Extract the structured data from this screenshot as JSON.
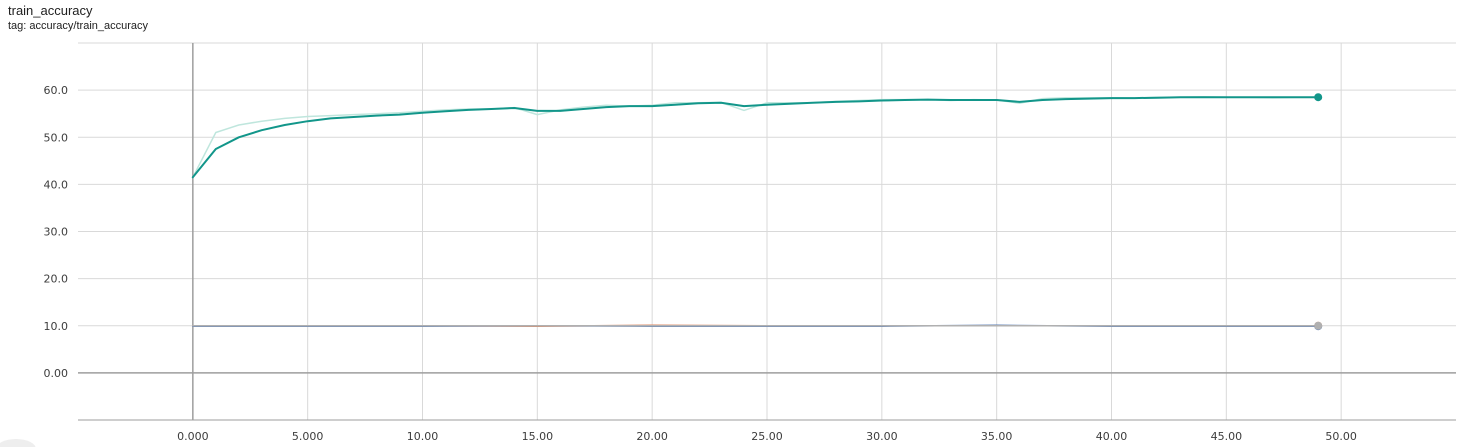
{
  "chart": {
    "title": "train_accuracy",
    "tag": "tag: accuracy/train_accuracy"
  },
  "colors": {
    "primary_run": "#12968a",
    "primary_run_raw": "#bfe6dd",
    "flat_run_orange": "#e0865e",
    "flat_run_blue": "#5b7fb8",
    "flat_run_gray": "#b0b0b0",
    "grid": "#d9d9d9",
    "axis": "#9e9e9e"
  },
  "chart_data": {
    "type": "line",
    "title": "train_accuracy",
    "xlim": [
      -5,
      55
    ],
    "ylim": [
      -10,
      70
    ],
    "xticks": [
      0,
      5,
      10,
      15,
      20,
      25,
      30,
      35,
      40,
      45,
      50
    ],
    "xtick_labels": [
      "0.000",
      "5.000",
      "10.00",
      "15.00",
      "20.00",
      "25.00",
      "30.00",
      "35.00",
      "40.00",
      "45.00",
      "50.00"
    ],
    "yticks": [
      0,
      10,
      20,
      30,
      40,
      50,
      60
    ],
    "ytick_labels": [
      "0.00",
      "10.0",
      "20.0",
      "30.0",
      "40.0",
      "50.0",
      "60.0"
    ],
    "grid": true,
    "series": [
      {
        "role": "raw",
        "color": "#bfe6dd",
        "x": [
          0,
          1,
          2,
          3,
          4,
          5,
          6,
          7,
          8,
          9,
          10,
          11,
          12,
          13,
          14,
          15,
          16,
          17,
          18,
          19,
          20,
          21,
          22,
          23,
          24,
          25,
          26,
          27,
          28,
          29,
          30,
          31,
          32,
          33,
          34,
          35,
          36,
          37,
          38,
          39,
          40,
          41,
          42,
          43,
          44,
          45,
          46,
          47,
          48,
          49
        ],
        "values": [
          41.5,
          51.0,
          52.6,
          53.4,
          54.0,
          54.4,
          54.6,
          54.8,
          55.0,
          55.2,
          55.5,
          55.8,
          56.0,
          56.0,
          56.3,
          54.8,
          55.8,
          56.4,
          56.8,
          56.6,
          56.8,
          57.3,
          57.3,
          57.4,
          55.7,
          57.3,
          57.3,
          57.3,
          57.6,
          57.8,
          58.0,
          58.0,
          58.0,
          57.8,
          58.0,
          57.9,
          57.2,
          58.2,
          58.4,
          58.4,
          58.4,
          58.3,
          58.5,
          58.5,
          58.6,
          58.5,
          58.5,
          58.4,
          58.5,
          58.5
        ]
      },
      {
        "role": "smoothed",
        "color": "#12968a",
        "x": [
          0,
          1,
          2,
          3,
          4,
          5,
          6,
          7,
          8,
          9,
          10,
          11,
          12,
          13,
          14,
          15,
          16,
          17,
          18,
          19,
          20,
          21,
          22,
          23,
          24,
          25,
          26,
          27,
          28,
          29,
          30,
          31,
          32,
          33,
          34,
          35,
          36,
          37,
          38,
          39,
          40,
          41,
          42,
          43,
          44,
          45,
          46,
          47,
          48,
          49
        ],
        "values": [
          41.5,
          47.5,
          50.0,
          51.5,
          52.6,
          53.4,
          54.0,
          54.3,
          54.6,
          54.8,
          55.2,
          55.5,
          55.8,
          56.0,
          56.2,
          55.6,
          55.6,
          56.0,
          56.4,
          56.6,
          56.6,
          56.9,
          57.2,
          57.3,
          56.6,
          56.9,
          57.1,
          57.3,
          57.5,
          57.6,
          57.8,
          57.9,
          58.0,
          57.9,
          57.9,
          57.9,
          57.5,
          57.9,
          58.1,
          58.2,
          58.3,
          58.3,
          58.4,
          58.5,
          58.5,
          58.5,
          58.5,
          58.5,
          58.5,
          58.5
        ]
      },
      {
        "role": "flat",
        "color": "#e0865e",
        "x": [
          0,
          5,
          10,
          15,
          20,
          25,
          30,
          35,
          40,
          45,
          49
        ],
        "values": [
          10.0,
          10.0,
          10.0,
          9.9,
          10.1,
          10.0,
          10.0,
          10.0,
          10.0,
          10.0,
          10.0
        ]
      },
      {
        "role": "flat",
        "color": "#5b7fb8",
        "x": [
          0,
          5,
          10,
          15,
          20,
          25,
          30,
          35,
          40,
          45,
          49
        ],
        "values": [
          9.9,
          9.9,
          9.9,
          10.0,
          9.9,
          9.9,
          9.9,
          10.1,
          9.9,
          9.9,
          9.9
        ]
      },
      {
        "role": "flat",
        "color": "#b0b0b0",
        "x": [
          0,
          5,
          10,
          15,
          20,
          25,
          30,
          35,
          40,
          45,
          49
        ],
        "values": [
          10.0,
          10.0,
          10.0,
          10.0,
          10.0,
          10.0,
          10.0,
          10.0,
          10.0,
          10.0,
          10.0
        ]
      }
    ]
  }
}
